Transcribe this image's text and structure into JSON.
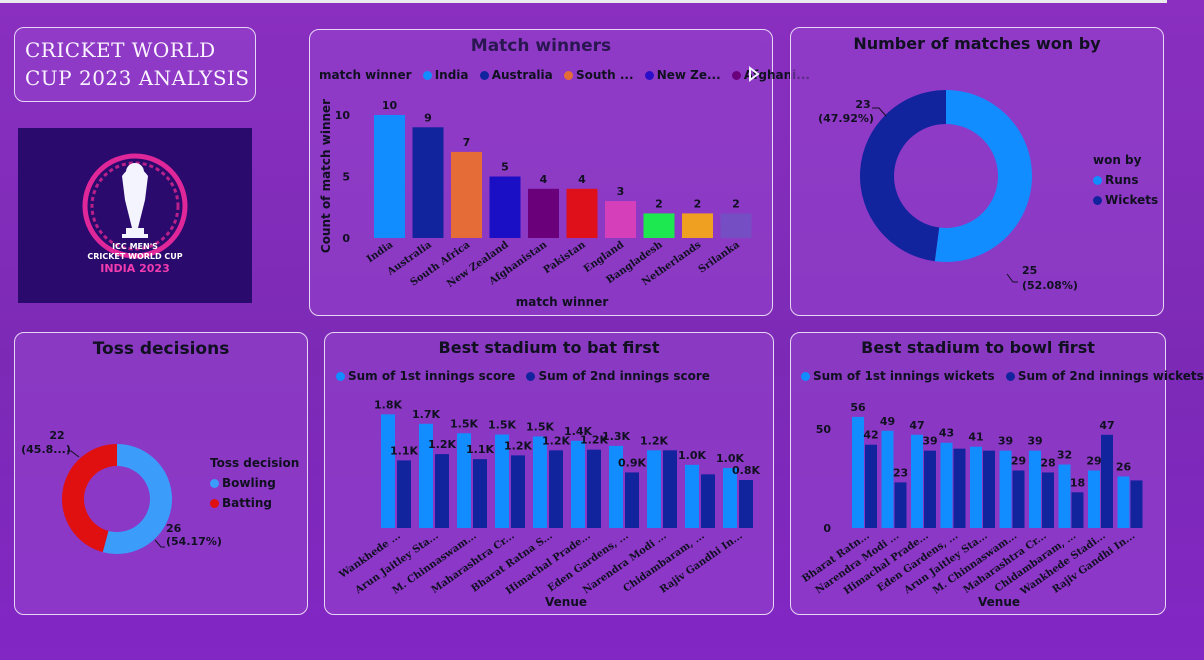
{
  "page": {
    "title": "CRICKET WORLD CUP 2023 ANALYSIS",
    "logo": {
      "line1": "ICC MEN'S",
      "line2": "CRICKET WORLD CUP",
      "line3": "INDIA 2023"
    }
  },
  "colors": {
    "dashboard_bg": "#8a2fc0",
    "blue": "#118dff",
    "navy": "#12239e",
    "bowling": "#3c9cfa",
    "batting": "#e01010"
  },
  "chart_data": [
    {
      "id": "match_winners",
      "type": "bar",
      "title": "Match winners",
      "legend_title": "match winner",
      "legend": [
        "India",
        "Australia",
        "South ...",
        "New Ze...",
        "Afghani..."
      ],
      "legend_colors": [
        "#118dff",
        "#12239e",
        "#e66c37",
        "#2a0ec9",
        "#6b007b"
      ],
      "categories": [
        "India",
        "Australia",
        "South Africa",
        "New Zealand",
        "Afghanistan",
        "Pakistan",
        "England",
        "Bangladesh",
        "Netherlands",
        "Srilanka"
      ],
      "values": [
        10,
        9,
        7,
        5,
        4,
        4,
        3,
        2,
        2,
        2
      ],
      "colors": [
        "#118dff",
        "#12239e",
        "#e66c37",
        "#1a0fc4",
        "#6b007b",
        "#e0101a",
        "#d63fba",
        "#1de84f",
        "#f0a020",
        "#744ec2"
      ],
      "xlabel": "match winner",
      "ylabel": "Count of match winner",
      "ylim": [
        0,
        10
      ],
      "yticks": [
        0,
        5,
        10
      ]
    },
    {
      "id": "won_by",
      "type": "pie",
      "title": "Number of matches won by",
      "legend_title": "won by",
      "labels": [
        "Runs",
        "Wickets"
      ],
      "values": [
        25,
        23
      ],
      "value_labels": [
        "25",
        "23"
      ],
      "percent_labels": [
        "(52.08%)",
        "(47.92%)"
      ],
      "colors": [
        "#118dff",
        "#12239e"
      ]
    },
    {
      "id": "toss",
      "type": "pie",
      "title": "Toss decisions",
      "legend_title": "Toss decision",
      "labels": [
        "Bowling",
        "Batting"
      ],
      "values": [
        26,
        22
      ],
      "value_labels": [
        "26",
        "22"
      ],
      "percent_labels": [
        "(54.17%)",
        "(45.8...)"
      ],
      "colors": [
        "#3c9cfa",
        "#e01010"
      ]
    },
    {
      "id": "bat_first",
      "type": "bar",
      "title": "Best stadium to bat first",
      "xlabel": "Venue",
      "categories": [
        "Wankhede ...",
        "Arun Jaitley Sta...",
        "M. Chinnaswam...",
        "Maharashtra Cr...",
        "Bharat Ratna S...",
        "Himachal Prade...",
        "Eden Gardens, ...",
        "Narendra Modi ...",
        "Chidambaram, ...",
        "Rajiv Gandhi In..."
      ],
      "series": [
        {
          "name": "Sum of 1st innings score",
          "values": [
            1800,
            1650,
            1500,
            1480,
            1450,
            1380,
            1300,
            1230,
            1000,
            950
          ],
          "labels": [
            "1.8K",
            "1.7K",
            "1.5K",
            "1.5K",
            "1.5K",
            "1.4K",
            "1.3K",
            "1.2K",
            "1.0K",
            "1.0K"
          ]
        },
        {
          "name": "Sum of 2nd innings score",
          "values": [
            1070,
            1170,
            1090,
            1150,
            1230,
            1240,
            880,
            1230,
            850,
            760
          ],
          "labels": [
            "1.1K",
            "1.2K",
            "1.1K",
            "1.2K",
            "1.2K",
            "1.2K",
            "0.9K",
            "",
            "",
            "0.8K"
          ]
        }
      ],
      "ylim": [
        0,
        1900
      ]
    },
    {
      "id": "bowl_first",
      "type": "bar",
      "title": "Best stadium to bowl first",
      "xlabel": "Venue",
      "categories": [
        "Bharat Ratn...",
        "Narendra Modi ...",
        "Himachal Prade...",
        "Eden Gardens, ...",
        "Arun Jaitley Sta...",
        "M. Chinnaswam...",
        "Maharashtra Cr...",
        "Chidambaram, ...",
        "Wankhede Stadi...",
        "Rajiv Gandhi In..."
      ],
      "series": [
        {
          "name": "Sum of 1st innings wickets",
          "values": [
            56,
            49,
            47,
            43,
            41,
            39,
            39,
            32,
            29,
            26
          ],
          "labels": [
            "56",
            "49",
            "47",
            "43",
            "41",
            "39",
            "39",
            "32",
            "29",
            "26"
          ]
        },
        {
          "name": "Sum of 2nd innings wickets",
          "values": [
            42,
            23,
            39,
            40,
            39,
            29,
            28,
            18,
            47,
            24
          ],
          "labels": [
            "42",
            "23",
            "39",
            "",
            "",
            "29",
            "28",
            "18",
            "47",
            ""
          ]
        }
      ],
      "yticks": [
        0,
        50
      ],
      "ylim": [
        0,
        60
      ]
    }
  ]
}
